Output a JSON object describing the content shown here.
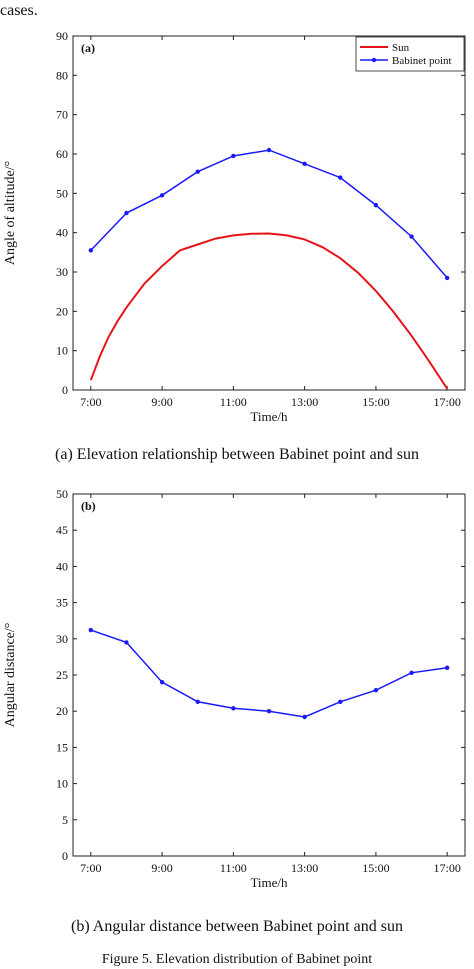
{
  "top_text": "cases.",
  "captions": {
    "a": "(a) Elevation relationship between Babinet point and sun",
    "b": "(b) Angular distance between Babinet point and sun",
    "figure": "Figure 5. Elevation distribution of Babinet point"
  },
  "colors": {
    "sun": "#e8141c",
    "babinet": "#1a1aff",
    "axis": "#222222"
  },
  "chart_data": [
    {
      "type": "line",
      "panel_label": "(a)",
      "xlabel": "Time/h",
      "ylabel": "Angle of altitude/°",
      "xlim": [
        6.5,
        17.5
      ],
      "ylim": [
        0,
        90
      ],
      "x_ticks": [
        7,
        9,
        11,
        13,
        15,
        17
      ],
      "x_tick_labels": [
        "7:00",
        "9:00",
        "11:00",
        "13:00",
        "15:00",
        "17:00"
      ],
      "y_ticks": [
        0,
        10,
        20,
        30,
        40,
        50,
        60,
        70,
        80,
        90
      ],
      "legend_position": "top-right",
      "series": [
        {
          "name": "Sun",
          "color": "#e8141c",
          "markers": false,
          "x": [
            7,
            7.25,
            7.5,
            7.75,
            8,
            8.5,
            9,
            9.5,
            10,
            10.5,
            11,
            11.5,
            12,
            12.5,
            13,
            13.5,
            14,
            14.5,
            15,
            15.5,
            16,
            16.5,
            17
          ],
          "y": [
            2.5,
            8.5,
            13.5,
            17.5,
            21,
            27,
            31.5,
            35.5,
            37,
            38.5,
            39.3,
            39.7,
            39.8,
            39.3,
            38.3,
            36.3,
            33.5,
            29.8,
            25.2,
            19.8,
            13.8,
            7.2,
            0.3
          ]
        },
        {
          "name": "Babinet point",
          "color": "#1a1aff",
          "markers": true,
          "x": [
            7,
            8,
            9,
            10,
            11,
            12,
            13,
            14,
            15,
            16,
            17
          ],
          "y": [
            35.5,
            45,
            49.5,
            55.5,
            59.5,
            61,
            57.5,
            54,
            47,
            39,
            28.5
          ]
        }
      ]
    },
    {
      "type": "line",
      "panel_label": "(b)",
      "xlabel": "Time/h",
      "ylabel": "Angular distance/°",
      "xlim": [
        6.5,
        17.5
      ],
      "ylim": [
        0,
        50
      ],
      "x_ticks": [
        7,
        9,
        11,
        13,
        15,
        17
      ],
      "x_tick_labels": [
        "7:00",
        "9:00",
        "11:00",
        "13:00",
        "15:00",
        "17:00"
      ],
      "y_ticks": [
        0,
        5,
        10,
        15,
        20,
        25,
        30,
        35,
        40,
        45,
        50
      ],
      "series": [
        {
          "color": "#1a1aff",
          "markers": true,
          "x": [
            7,
            8,
            9,
            10,
            11,
            12,
            13,
            14,
            15,
            16,
            17
          ],
          "y": [
            31.2,
            29.5,
            24,
            21.3,
            20.4,
            20,
            19.2,
            21.3,
            22.9,
            25.3,
            26
          ]
        }
      ]
    }
  ]
}
